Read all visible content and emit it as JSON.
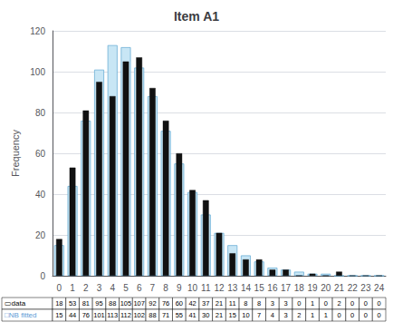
{
  "chart_data": {
    "type": "bar",
    "title": "Item A1",
    "ylabel": "Frequency",
    "categories": [
      0,
      1,
      2,
      3,
      4,
      5,
      6,
      7,
      8,
      9,
      10,
      11,
      12,
      13,
      14,
      15,
      16,
      17,
      18,
      19,
      20,
      21,
      22,
      23,
      24
    ],
    "series": [
      {
        "name": "▭data",
        "color": "#111111",
        "values": [
          18,
          53,
          81,
          95,
          88,
          105,
          107,
          92,
          76,
          60,
          42,
          37,
          21,
          11,
          8,
          8,
          3,
          3,
          0,
          1,
          0,
          2,
          0,
          0,
          0
        ]
      },
      {
        "name": "□NB fitted",
        "color": "#c8e6f5",
        "values": [
          15,
          44,
          76,
          101,
          113,
          112,
          102,
          88,
          71,
          55,
          41,
          30,
          21,
          15,
          10,
          7,
          4,
          3,
          2,
          1,
          1,
          0,
          0,
          0,
          0
        ]
      }
    ],
    "ylim": [
      0,
      120
    ],
    "yticks": [
      0,
      20,
      40,
      60,
      80,
      100,
      120
    ],
    "grid": true
  }
}
